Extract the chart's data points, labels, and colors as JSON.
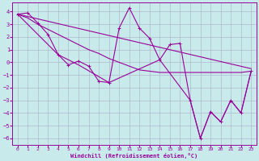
{
  "xlabel": "Windchill (Refroidissement éolien,°C)",
  "bg_color": "#c8eaea",
  "line_color": "#990099",
  "grid_color": "#b0b8cc",
  "xlim": [
    -0.5,
    23.5
  ],
  "ylim": [
    -6.5,
    4.7
  ],
  "yticks": [
    -6,
    -5,
    -4,
    -3,
    -2,
    -1,
    0,
    1,
    2,
    3,
    4
  ],
  "xticks": [
    0,
    1,
    2,
    3,
    4,
    5,
    6,
    7,
    8,
    9,
    10,
    11,
    12,
    13,
    14,
    15,
    16,
    17,
    18,
    19,
    20,
    21,
    22,
    23
  ],
  "series1_x": [
    0,
    1,
    2,
    3,
    4,
    5,
    6,
    7,
    8,
    9,
    10,
    11,
    12,
    13,
    14,
    15,
    16,
    17,
    18,
    19,
    20,
    21,
    22,
    23
  ],
  "series1_y": [
    3.8,
    3.9,
    3.1,
    2.2,
    0.6,
    -0.2,
    0.1,
    -0.3,
    -1.5,
    -1.6,
    2.7,
    4.3,
    2.7,
    1.9,
    0.2,
    1.4,
    1.5,
    -3.0,
    -6.0,
    -3.9,
    -4.7,
    -3.0,
    -4.0,
    -0.7
  ],
  "series2_x": [
    0,
    1,
    2,
    3,
    4,
    5,
    6,
    7,
    8,
    9,
    10,
    11,
    12,
    13,
    14,
    15,
    16,
    17,
    18,
    19,
    20,
    21,
    22,
    23
  ],
  "series2_y": [
    3.8,
    3.5,
    3.0,
    2.6,
    2.2,
    1.8,
    1.4,
    1.0,
    0.7,
    0.3,
    0.0,
    -0.3,
    -0.6,
    -0.7,
    -0.8,
    -0.8,
    -0.8,
    -0.8,
    -0.8,
    -0.8,
    -0.8,
    -0.8,
    -0.8,
    -0.7
  ],
  "series3_x": [
    0,
    23
  ],
  "series3_y": [
    3.8,
    -0.5
  ],
  "series4_x": [
    0,
    2,
    4,
    6,
    9,
    14,
    17,
    18,
    19,
    20,
    21,
    22,
    23
  ],
  "series4_y": [
    3.8,
    2.2,
    0.6,
    -0.2,
    -1.6,
    0.2,
    -3.0,
    -6.0,
    -3.9,
    -4.7,
    -3.0,
    -4.0,
    -0.7
  ]
}
